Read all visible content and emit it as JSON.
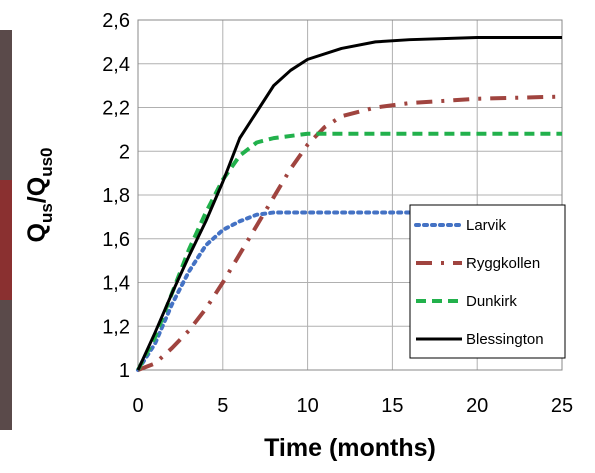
{
  "chart_data": {
    "type": "line",
    "xlabel": "Time (months)",
    "ylabel_parts": [
      "Q",
      "us",
      "/Q",
      "us0"
    ],
    "xlim": [
      0,
      25
    ],
    "xticks": [
      0,
      5,
      10,
      15,
      20,
      25
    ],
    "ylim": [
      1,
      2.6
    ],
    "yticks": [
      1,
      {
        "value": 1.2,
        "label": "1,2"
      },
      {
        "value": 1.4,
        "label": "1,4"
      },
      {
        "value": 1.6,
        "label": "1,6"
      },
      {
        "value": 1.8,
        "label": "1,8"
      },
      2,
      {
        "value": 2.2,
        "label": "2,2"
      },
      {
        "value": 2.4,
        "label": "2,4"
      },
      {
        "value": 2.6,
        "label": "2,6"
      }
    ],
    "grid": true,
    "legend": "lower right",
    "series": [
      {
        "name": "Larvik",
        "color": "#4472c4",
        "dash": "dotted",
        "x": [
          0,
          1,
          2,
          3,
          4,
          5,
          6,
          7,
          8,
          25
        ],
        "values": [
          1,
          1.12,
          1.3,
          1.45,
          1.57,
          1.64,
          1.68,
          1.71,
          1.72,
          1.72
        ]
      },
      {
        "name": "Ryggkollen",
        "color": "#a0443f",
        "dash": "dashdot",
        "x": [
          0,
          1,
          2,
          3,
          4,
          5,
          6,
          7,
          8,
          9,
          10,
          11,
          12,
          14,
          16,
          20,
          25
        ],
        "values": [
          1,
          1.03,
          1.1,
          1.18,
          1.28,
          1.4,
          1.53,
          1.66,
          1.79,
          1.92,
          2.03,
          2.11,
          2.16,
          2.2,
          2.22,
          2.24,
          2.25
        ]
      },
      {
        "name": "Dunkirk",
        "color": "#22b14c",
        "dash": "dashed",
        "x": [
          0,
          1,
          2,
          3,
          4,
          5,
          6,
          7,
          8,
          10,
          25
        ],
        "values": [
          1,
          1.15,
          1.35,
          1.55,
          1.72,
          1.87,
          1.98,
          2.04,
          2.06,
          2.08,
          2.08
        ]
      },
      {
        "name": "Blessington",
        "color": "#000000",
        "dash": "solid",
        "x": [
          0,
          1,
          2,
          3,
          4,
          5,
          6,
          7,
          8,
          9,
          10,
          12,
          14,
          16,
          20,
          25
        ],
        "values": [
          1,
          1.17,
          1.35,
          1.52,
          1.68,
          1.86,
          2.06,
          2.18,
          2.3,
          2.37,
          2.42,
          2.47,
          2.5,
          2.51,
          2.52,
          2.52
        ]
      }
    ]
  }
}
